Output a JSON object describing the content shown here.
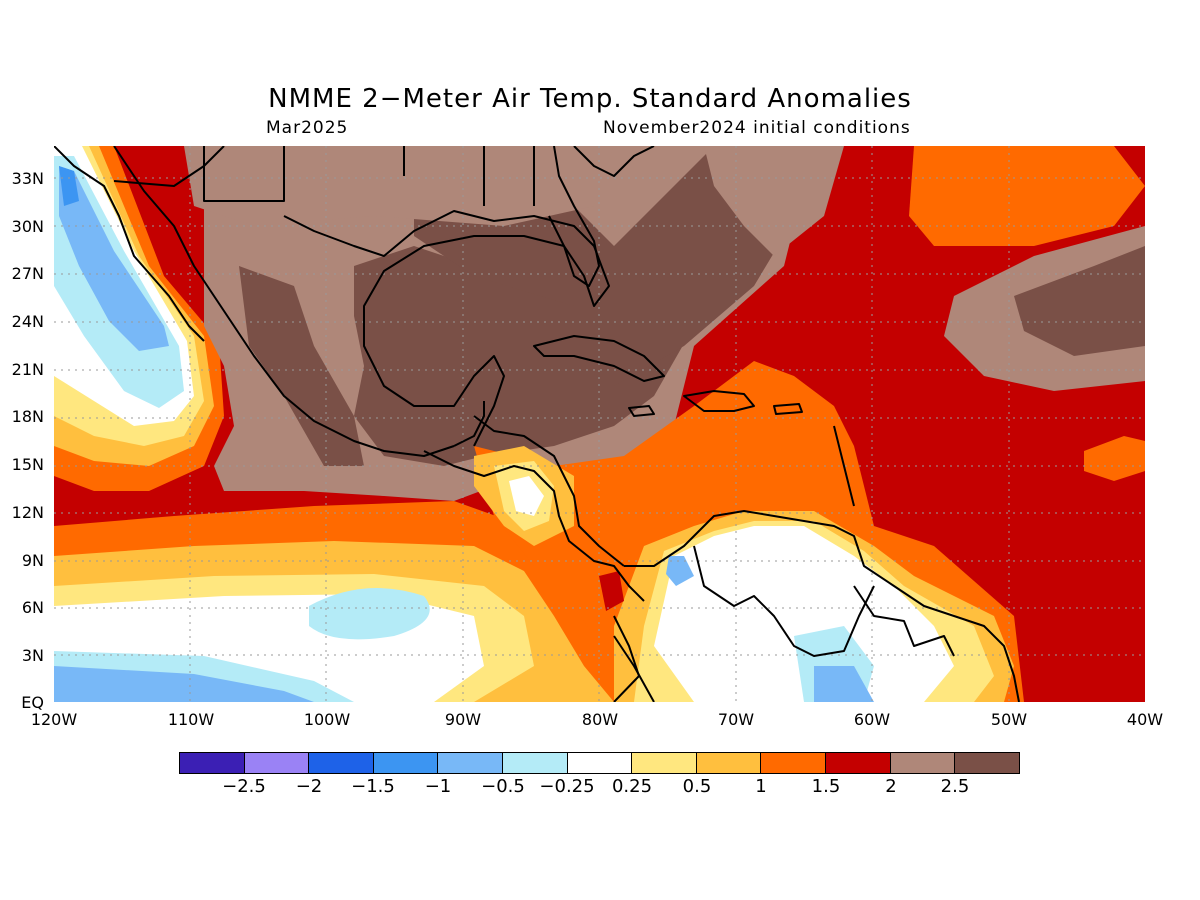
{
  "header": {
    "title": "NMME 2−Meter Air Temp. Standard Anomalies",
    "target_month": "Mar2025",
    "initial_conditions": "November2024 initial conditions"
  },
  "axes": {
    "lat_labels": [
      "33N",
      "30N",
      "27N",
      "24N",
      "21N",
      "18N",
      "15N",
      "12N",
      "9N",
      "6N",
      "3N",
      "EQ"
    ],
    "lon_labels": [
      "120W",
      "110W",
      "100W",
      "90W",
      "80W",
      "70W",
      "60W",
      "50W",
      "40W"
    ]
  },
  "colorbar": {
    "colors": [
      "#3b1fb4",
      "#9a82f5",
      "#1e62e8",
      "#3c95f2",
      "#78b8f7",
      "#b4ebf7",
      "#ffffff",
      "#ffe77f",
      "#ffbf3e",
      "#ff6a00",
      "#c40000",
      "#af8779",
      "#7a5047"
    ],
    "labels": [
      "−2.5",
      "−2",
      "−1.5",
      "−1",
      "−0.5",
      "−0.25",
      "0.25",
      "0.5",
      "1",
      "1.5",
      "2",
      "2.5"
    ]
  }
}
